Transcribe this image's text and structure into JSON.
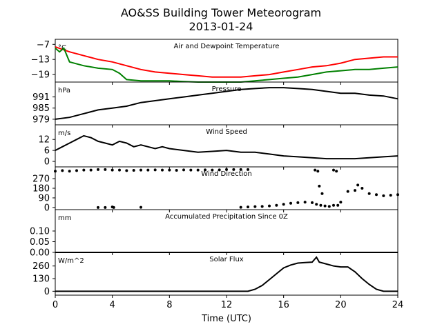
{
  "figure": {
    "title": "AO&SS Building Tower Meteorogram",
    "subtitle": "2013-01-24",
    "xlabel": "Time (UTC)",
    "x_ticks": [
      "0",
      "4",
      "8",
      "12",
      "16",
      "20",
      "24"
    ]
  },
  "chart_data": [
    {
      "type": "line",
      "title": "Air and Dewpoint Temperature",
      "unit_label": "°C",
      "ylim": [
        -22,
        -5
      ],
      "y_ticks": [
        -7,
        -13,
        -19
      ],
      "y_tick_labels": [
        "−7",
        "−13",
        "−19"
      ],
      "series": [
        {
          "color": "#ff0000",
          "x": [
            0,
            0.5,
            1,
            2,
            3,
            4,
            5,
            6,
            7,
            8,
            9,
            10,
            11,
            12,
            13,
            14,
            15,
            16,
            17,
            18,
            19,
            20,
            21,
            22,
            23,
            24
          ],
          "values": [
            -8,
            -9,
            -10,
            -11.5,
            -13,
            -14,
            -15.5,
            -17,
            -18,
            -18.5,
            -19,
            -19.5,
            -20,
            -20,
            -20,
            -19.5,
            -19,
            -18,
            -17,
            -16,
            -15.5,
            -14.5,
            -13,
            -12.5,
            -12,
            -12
          ]
        },
        {
          "color": "#008000",
          "x": [
            0,
            0.3,
            0.6,
            1,
            2,
            3,
            4,
            4.5,
            5,
            6,
            7,
            8,
            9,
            10,
            11,
            12,
            13,
            14,
            15,
            16,
            17,
            18,
            19,
            20,
            21,
            22,
            23,
            24
          ],
          "values": [
            -8.5,
            -10,
            -8.5,
            -14,
            -15.5,
            -16.5,
            -17,
            -18.5,
            -21,
            -21.5,
            -21.5,
            -21.5,
            -21.8,
            -22,
            -22,
            -22,
            -22,
            -21.5,
            -21,
            -20.5,
            -20,
            -19,
            -18,
            -17.5,
            -17,
            -17,
            -16.5,
            -16
          ]
        }
      ]
    },
    {
      "type": "line",
      "title": "Pressure",
      "unit_label": "hPa",
      "ylim": [
        976,
        999
      ],
      "y_ticks": [
        991,
        985,
        979
      ],
      "y_tick_labels": [
        "991",
        "985",
        "979"
      ],
      "series": [
        {
          "color": "#000000",
          "x": [
            0,
            1,
            2,
            3,
            4,
            5,
            6,
            7,
            8,
            9,
            10,
            11,
            12,
            13,
            14,
            15,
            16,
            17,
            18,
            19,
            20,
            21,
            22,
            23,
            24
          ],
          "values": [
            979,
            980,
            982,
            984,
            985,
            986,
            988,
            989,
            990,
            991,
            992,
            993,
            994,
            995,
            995.5,
            996,
            996,
            995.5,
            995,
            994,
            993,
            993,
            992,
            991.5,
            990
          ]
        }
      ]
    },
    {
      "type": "line",
      "title": "Wind Speed",
      "unit_label": "m/s",
      "ylim": [
        -3,
        20
      ],
      "y_ticks": [
        12,
        6,
        0
      ],
      "y_tick_labels": [
        "12",
        "6",
        "0"
      ],
      "series": [
        {
          "color": "#000000",
          "x": [
            0,
            0.5,
            1,
            1.5,
            2,
            2.5,
            3,
            3.5,
            4,
            4.5,
            5,
            5.5,
            6,
            6.5,
            7,
            7.5,
            8,
            9,
            10,
            11,
            12,
            13,
            14,
            15,
            16,
            17,
            18,
            19,
            20,
            21,
            22,
            23,
            24
          ],
          "values": [
            6,
            8,
            10,
            12,
            14,
            13,
            11,
            10,
            9,
            11,
            10,
            8,
            9,
            8,
            7,
            8,
            7,
            6,
            5,
            5.5,
            6,
            5,
            5,
            4,
            3,
            2.5,
            2,
            1.5,
            1.5,
            1.5,
            2,
            2.5,
            3
          ]
        }
      ]
    },
    {
      "type": "scatter",
      "title": "Wind Direction",
      "unit_label": "",
      "ylim": [
        -20,
        380
      ],
      "y_ticks": [
        270,
        180,
        90,
        0
      ],
      "y_tick_labels": [
        "270",
        "180",
        "90",
        "0"
      ],
      "series": [
        {
          "color": "#000000",
          "x": [
            0,
            0.5,
            1,
            1.5,
            2,
            2.5,
            3,
            3.5,
            4,
            4.5,
            5,
            5.5,
            6,
            6.5,
            7,
            7.5,
            8,
            8.5,
            9,
            9.5,
            10,
            10.5,
            11,
            11.5,
            12,
            12.5,
            13,
            13.5,
            3,
            3.5,
            4,
            4.1,
            6,
            13,
            13.5,
            14,
            14.5,
            15,
            15.5,
            16,
            16.5,
            17,
            17.5,
            18,
            18.3,
            18.6,
            18.9,
            19.2,
            19.5,
            18.2,
            18.4,
            18.5,
            18.7,
            19.5,
            19.7,
            19.8,
            20,
            20.5,
            21,
            21.2,
            21.5,
            22,
            22.5,
            23,
            23.5,
            24
          ],
          "values": [
            340,
            345,
            340,
            345,
            350,
            350,
            355,
            355,
            350,
            350,
            345,
            348,
            350,
            350,
            352,
            350,
            350,
            348,
            352,
            350,
            350,
            352,
            350,
            352,
            355,
            355,
            355,
            355,
            0,
            0,
            5,
            0,
            2,
            2,
            5,
            8,
            10,
            15,
            20,
            30,
            40,
            45,
            50,
            45,
            30,
            20,
            15,
            10,
            20,
            350,
            340,
            200,
            130,
            350,
            340,
            20,
            50,
            150,
            160,
            210,
            180,
            130,
            120,
            110,
            115,
            120
          ]
        }
      ]
    },
    {
      "type": "line",
      "title": "Accumulated Precipitation Since 0Z",
      "unit_label": "mm",
      "ylim": [
        0,
        0.2
      ],
      "y_ticks": [
        0.1,
        0.05,
        0.0
      ],
      "y_tick_labels": [
        "0.10",
        "0.05",
        "0.00"
      ],
      "series": [
        {
          "color": "#000000",
          "x": [
            0,
            24
          ],
          "values": [
            0,
            0
          ]
        }
      ]
    },
    {
      "type": "line",
      "title": "Solar Flux",
      "unit_label": "W/m^2",
      "ylim": [
        -40,
        400
      ],
      "y_ticks": [
        260,
        130,
        0
      ],
      "y_tick_labels": [
        "260",
        "130",
        "0"
      ],
      "series": [
        {
          "color": "#000000",
          "x": [
            0,
            13.5,
            14,
            14.5,
            15,
            15.5,
            16,
            16.5,
            17,
            17.5,
            18,
            18.3,
            18.5,
            19,
            19.5,
            20,
            20.5,
            21,
            21.5,
            22,
            22.5,
            23,
            24
          ],
          "values": [
            0,
            0,
            20,
            60,
            120,
            180,
            240,
            270,
            290,
            295,
            300,
            350,
            300,
            280,
            260,
            250,
            250,
            200,
            130,
            70,
            20,
            0,
            0
          ]
        }
      ]
    }
  ]
}
